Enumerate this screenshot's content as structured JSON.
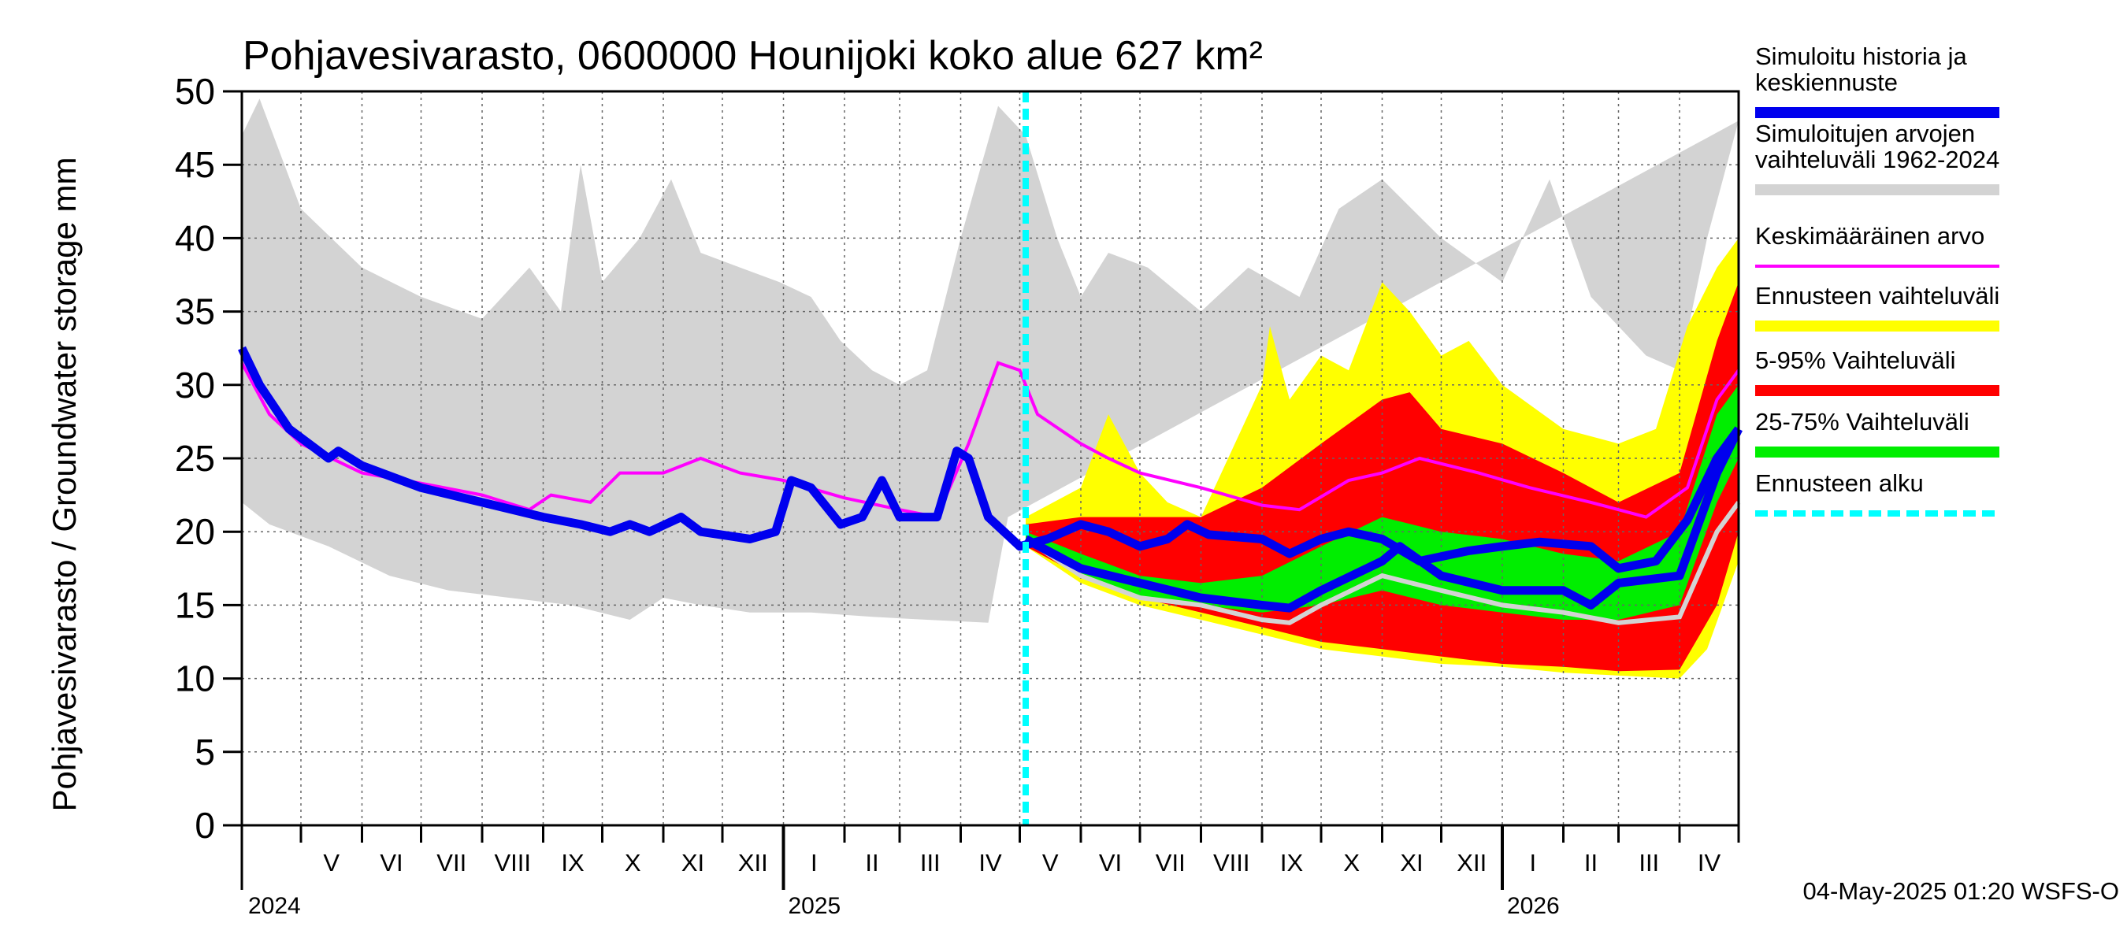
{
  "chart_data": {
    "type": "area",
    "title": "Pohjavesivarasto, 0600000 Hounijoki koko alue 627 km²",
    "ylabel": "Pohjavesivarasto / Groundwater storage   mm",
    "ylim": [
      0,
      50
    ],
    "yticks": [
      0,
      5,
      10,
      15,
      20,
      25,
      30,
      35,
      40,
      45,
      50
    ],
    "xlim": [
      "2024-04-01",
      "2026-05-01"
    ],
    "grid": true,
    "legend_position": "right",
    "month_labels": [
      "V",
      "VI",
      "VII",
      "VIII",
      "IX",
      "X",
      "XI",
      "XII",
      "I",
      "II",
      "III",
      "IV",
      "V",
      "VI",
      "VII",
      "VIII",
      "IX",
      "X",
      "XI",
      "XII",
      "I",
      "II",
      "III",
      "IV"
    ],
    "year_labels": [
      "2024",
      "2025",
      "2026"
    ],
    "forecast_start": "2025-05-04",
    "timestamp": "04-May-2025 01:20 WSFS-O",
    "colors": {
      "history": "#0000ee",
      "hist_range": "#d3d3d3",
      "mean": "#ff00ff",
      "fc_range": "#ffff00",
      "p5_95": "#ff0000",
      "p25_75": "#00ee00",
      "forecast_line": "#00ffff",
      "sim_median": "#d3d3d3"
    },
    "legend": [
      {
        "key": "history",
        "label": "Simuloitu historia ja keskiennuste",
        "lines": [
          "Simuloitu historia ja",
          "keskiennuste"
        ]
      },
      {
        "key": "hist_range",
        "label": "Simuloitujen arvojen vaihteluväli 1962-2024",
        "lines": [
          "Simuloitujen arvojen",
          "vaihteluväli 1962-2024"
        ]
      },
      {
        "key": "mean",
        "label": "Keskimääräinen arvo",
        "lines": [
          "Keskimääräinen arvo"
        ]
      },
      {
        "key": "fc_range",
        "label": "Ennusteen vaihteluväli",
        "lines": [
          "Ennusteen vaihteluväli"
        ]
      },
      {
        "key": "p5_95",
        "label": "5-95% Vaihteluväli",
        "lines": [
          "5-95% Vaihteluväli"
        ]
      },
      {
        "key": "p25_75",
        "label": "25-75% Vaihteluväli",
        "lines": [
          "25-75% Vaihteluväli"
        ]
      },
      {
        "key": "forecast_line",
        "label": "Ennusteen alku",
        "lines": [
          "Ennusteen alku"
        ]
      }
    ],
    "series": {
      "hist_range_upper": [
        [
          "2024-04-01",
          47
        ],
        [
          "2024-04-10",
          49.5
        ],
        [
          "2024-05-01",
          42
        ],
        [
          "2024-06-01",
          38
        ],
        [
          "2024-07-01",
          36
        ],
        [
          "2024-08-01",
          34.5
        ],
        [
          "2024-08-25",
          38
        ],
        [
          "2024-09-10",
          35
        ],
        [
          "2024-09-20",
          45
        ],
        [
          "2024-10-01",
          37
        ],
        [
          "2024-10-20",
          40
        ],
        [
          "2024-11-05",
          44
        ],
        [
          "2024-11-20",
          39
        ],
        [
          "2024-12-10",
          38
        ],
        [
          "2024-12-30",
          37
        ],
        [
          "2025-01-15",
          36
        ],
        [
          "2025-01-30",
          33
        ],
        [
          "2025-02-15",
          31
        ],
        [
          "2025-03-01",
          30
        ],
        [
          "2025-03-15",
          31
        ],
        [
          "2025-04-01",
          40
        ],
        [
          "2025-04-20",
          49
        ],
        [
          "2025-05-04",
          47
        ],
        [
          "2025-05-20",
          40
        ],
        [
          "2025-06-01",
          36
        ],
        [
          "2025-06-15",
          39
        ],
        [
          "2025-07-05",
          38
        ],
        [
          "2025-08-01",
          35
        ],
        [
          "2025-08-25",
          38
        ],
        [
          "2025-09-20",
          36
        ],
        [
          "2025-10-10",
          42
        ],
        [
          "2025-11-01",
          44
        ],
        [
          "2025-12-01",
          40
        ],
        [
          "2026-01-01",
          37
        ],
        [
          "2026-01-25",
          44
        ],
        [
          "2026-02-15",
          36
        ],
        [
          "2026-03-01",
          34
        ],
        [
          "2026-03-15",
          32
        ],
        [
          "2026-04-01",
          31
        ],
        [
          "2026-04-15",
          40
        ],
        [
          "2026-05-01",
          48
        ]
      ],
      "hist_range_lower": [
        [
          "2024-04-01",
          22
        ],
        [
          "2024-04-15",
          20.5
        ],
        [
          "2024-05-15",
          19
        ],
        [
          "2024-06-15",
          17
        ],
        [
          "2024-07-15",
          16
        ],
        [
          "2024-08-15",
          15.5
        ],
        [
          "2024-09-15",
          15
        ],
        [
          "2024-10-15",
          14
        ],
        [
          "2024-11-01",
          15.5
        ],
        [
          "2024-11-20",
          15
        ],
        [
          "2024-12-15",
          14.5
        ],
        [
          "2025-01-15",
          14.5
        ],
        [
          "2025-02-15",
          14.2
        ],
        [
          "2025-03-15",
          14
        ],
        [
          "2025-04-15",
          13.8
        ],
        [
          "2025-04-25",
          21
        ]
      ],
      "fc_range_upper": [
        [
          "2025-05-04",
          21
        ],
        [
          "2025-06-01",
          23
        ],
        [
          "2025-06-15",
          28
        ],
        [
          "2025-07-01",
          24
        ],
        [
          "2025-07-15",
          22
        ],
        [
          "2025-08-01",
          21
        ],
        [
          "2025-09-01",
          30
        ],
        [
          "2025-09-05",
          34
        ],
        [
          "2025-09-15",
          29
        ],
        [
          "2025-10-01",
          32
        ],
        [
          "2025-10-15",
          31
        ],
        [
          "2025-11-01",
          37
        ],
        [
          "2025-11-15",
          35
        ],
        [
          "2025-12-01",
          32
        ],
        [
          "2025-12-15",
          33
        ],
        [
          "2026-01-01",
          30
        ],
        [
          "2026-02-01",
          27
        ],
        [
          "2026-03-01",
          26
        ],
        [
          "2026-03-20",
          27
        ],
        [
          "2026-04-05",
          34
        ],
        [
          "2026-04-20",
          38
        ],
        [
          "2026-05-01",
          40
        ]
      ],
      "fc_range_lower": [
        [
          "2025-05-04",
          19
        ],
        [
          "2025-06-01",
          16.5
        ],
        [
          "2025-07-01",
          15
        ],
        [
          "2025-08-01",
          14
        ],
        [
          "2025-09-01",
          13
        ],
        [
          "2025-10-01",
          12
        ],
        [
          "2025-11-01",
          11.5
        ],
        [
          "2025-12-01",
          11
        ],
        [
          "2026-01-01",
          10.8
        ],
        [
          "2026-02-01",
          10.4
        ],
        [
          "2026-03-01",
          10.2
        ],
        [
          "2026-04-01",
          10
        ],
        [
          "2026-04-15",
          12
        ],
        [
          "2026-05-01",
          18
        ]
      ],
      "p5_95_upper": [
        [
          "2025-05-04",
          20.5
        ],
        [
          "2025-06-01",
          21
        ],
        [
          "2025-07-01",
          21
        ],
        [
          "2025-08-01",
          21
        ],
        [
          "2025-09-01",
          23
        ],
        [
          "2025-10-01",
          26
        ],
        [
          "2025-11-01",
          29
        ],
        [
          "2025-11-15",
          29.5
        ],
        [
          "2025-12-01",
          27
        ],
        [
          "2026-01-01",
          26
        ],
        [
          "2026-02-01",
          24
        ],
        [
          "2026-03-01",
          22
        ],
        [
          "2026-04-01",
          24
        ],
        [
          "2026-04-20",
          33
        ],
        [
          "2026-05-01",
          37
        ]
      ],
      "p5_95_lower": [
        [
          "2025-05-04",
          19
        ],
        [
          "2025-06-01",
          17
        ],
        [
          "2025-07-01",
          15.5
        ],
        [
          "2025-08-01",
          14.5
        ],
        [
          "2025-09-01",
          13.5
        ],
        [
          "2025-10-01",
          12.5
        ],
        [
          "2025-11-01",
          12
        ],
        [
          "2025-12-01",
          11.5
        ],
        [
          "2026-01-01",
          11
        ],
        [
          "2026-02-01",
          10.8
        ],
        [
          "2026-03-01",
          10.5
        ],
        [
          "2026-04-01",
          10.6
        ],
        [
          "2026-04-20",
          15
        ],
        [
          "2026-05-01",
          20
        ]
      ],
      "p25_75_upper": [
        [
          "2025-05-04",
          20
        ],
        [
          "2025-06-01",
          18.5
        ],
        [
          "2025-07-01",
          17
        ],
        [
          "2025-08-01",
          16.5
        ],
        [
          "2025-09-01",
          17
        ],
        [
          "2025-10-01",
          19
        ],
        [
          "2025-11-01",
          21
        ],
        [
          "2025-12-01",
          20
        ],
        [
          "2026-01-01",
          19.5
        ],
        [
          "2026-02-01",
          18.5
        ],
        [
          "2026-03-01",
          18
        ],
        [
          "2026-04-01",
          20
        ],
        [
          "2026-04-20",
          28
        ],
        [
          "2026-05-01",
          30
        ]
      ],
      "p25_75_lower": [
        [
          "2025-05-04",
          19.5
        ],
        [
          "2025-06-01",
          17
        ],
        [
          "2025-07-01",
          15.5
        ],
        [
          "2025-08-01",
          15
        ],
        [
          "2025-09-01",
          14.5
        ],
        [
          "2025-10-01",
          15
        ],
        [
          "2025-11-01",
          16
        ],
        [
          "2025-12-01",
          15
        ],
        [
          "2026-01-01",
          14.5
        ],
        [
          "2026-02-01",
          14
        ],
        [
          "2026-03-01",
          14
        ],
        [
          "2026-04-01",
          15
        ],
        [
          "2026-04-20",
          22
        ],
        [
          "2026-05-01",
          25
        ]
      ],
      "mean": [
        [
          "2024-04-01",
          31.5
        ],
        [
          "2024-04-15",
          28
        ],
        [
          "2024-05-01",
          26
        ],
        [
          "2024-06-01",
          24
        ],
        [
          "2024-07-01",
          23.3
        ],
        [
          "2024-08-01",
          22.5
        ],
        [
          "2024-08-25",
          21.5
        ],
        [
          "2024-09-05",
          22.5
        ],
        [
          "2024-09-25",
          22
        ],
        [
          "2024-10-10",
          24
        ],
        [
          "2024-11-01",
          24
        ],
        [
          "2024-11-20",
          25
        ],
        [
          "2024-12-10",
          24
        ],
        [
          "2025-01-01",
          23.5
        ],
        [
          "2025-02-01",
          22.3
        ],
        [
          "2025-03-01",
          21.5
        ],
        [
          "2025-03-20",
          21
        ],
        [
          "2025-04-05",
          26
        ],
        [
          "2025-04-20",
          31.5
        ],
        [
          "2025-05-01",
          31
        ],
        [
          "2025-05-10",
          28
        ],
        [
          "2025-06-01",
          26
        ],
        [
          "2025-06-15",
          25
        ],
        [
          "2025-07-01",
          24
        ],
        [
          "2025-08-01",
          23
        ],
        [
          "2025-09-01",
          21.8
        ],
        [
          "2025-09-20",
          21.5
        ],
        [
          "2025-10-15",
          23.5
        ],
        [
          "2025-11-01",
          24
        ],
        [
          "2025-11-20",
          25
        ],
        [
          "2025-12-20",
          24
        ],
        [
          "2026-01-15",
          23
        ],
        [
          "2026-02-15",
          22
        ],
        [
          "2026-03-15",
          21
        ],
        [
          "2026-04-05",
          23
        ],
        [
          "2026-04-20",
          29
        ],
        [
          "2026-05-01",
          31
        ]
      ],
      "history": [
        [
          "2024-04-01",
          32.5
        ],
        [
          "2024-04-10",
          30
        ],
        [
          "2024-04-25",
          27
        ],
        [
          "2024-05-15",
          25
        ],
        [
          "2024-05-20",
          25.5
        ],
        [
          "2024-06-01",
          24.5
        ],
        [
          "2024-07-01",
          23
        ],
        [
          "2024-08-01",
          22
        ],
        [
          "2024-09-01",
          21
        ],
        [
          "2024-09-20",
          20.5
        ],
        [
          "2024-10-05",
          20
        ],
        [
          "2024-10-15",
          20.5
        ],
        [
          "2024-10-25",
          20
        ],
        [
          "2024-11-10",
          21
        ],
        [
          "2024-11-20",
          20
        ],
        [
          "2024-12-15",
          19.5
        ],
        [
          "2024-12-28",
          20
        ],
        [
          "2025-01-05",
          23.5
        ],
        [
          "2025-01-15",
          23
        ],
        [
          "2025-01-30",
          20.5
        ],
        [
          "2025-02-10",
          21
        ],
        [
          "2025-02-20",
          23.5
        ],
        [
          "2025-03-01",
          21
        ],
        [
          "2025-03-20",
          21
        ],
        [
          "2025-03-30",
          25.5
        ],
        [
          "2025-04-05",
          25
        ],
        [
          "2025-04-15",
          21
        ],
        [
          "2025-05-01",
          19
        ],
        [
          "2025-05-15",
          19.5
        ],
        [
          "2025-06-01",
          20.5
        ],
        [
          "2025-06-15",
          20
        ],
        [
          "2025-07-01",
          19
        ],
        [
          "2025-07-15",
          19.5
        ],
        [
          "2025-07-25",
          20.5
        ],
        [
          "2025-08-05",
          19.8
        ],
        [
          "2025-09-01",
          19.5
        ],
        [
          "2025-09-15",
          18.5
        ],
        [
          "2025-10-01",
          19.5
        ],
        [
          "2025-10-15",
          20
        ],
        [
          "2025-11-01",
          19.5
        ],
        [
          "2025-11-20",
          18
        ],
        [
          "2025-12-15",
          18.7
        ],
        [
          "2026-01-01",
          19
        ],
        [
          "2026-01-20",
          19.3
        ],
        [
          "2026-02-15",
          19
        ],
        [
          "2026-03-01",
          17.5
        ],
        [
          "2026-03-20",
          18
        ],
        [
          "2026-04-05",
          20.8
        ],
        [
          "2026-04-20",
          25
        ],
        [
          "2026-05-01",
          27
        ]
      ],
      "forecast_mean": [
        [
          "2025-05-04",
          19.5
        ],
        [
          "2025-06-01",
          17.5
        ],
        [
          "2025-07-01",
          16.5
        ],
        [
          "2025-08-01",
          15.5
        ],
        [
          "2025-09-01",
          15
        ],
        [
          "2025-09-15",
          14.8
        ],
        [
          "2025-10-01",
          16
        ],
        [
          "2025-11-01",
          18
        ],
        [
          "2025-11-10",
          19
        ],
        [
          "2025-12-01",
          17
        ],
        [
          "2026-01-01",
          16
        ],
        [
          "2026-02-01",
          16
        ],
        [
          "2026-02-15",
          15
        ],
        [
          "2026-03-01",
          16.5
        ],
        [
          "2026-04-01",
          17
        ],
        [
          "2026-04-20",
          24
        ],
        [
          "2026-05-01",
          27
        ]
      ],
      "sim_median": [
        [
          "2025-05-04",
          19.5
        ],
        [
          "2025-06-01",
          17
        ],
        [
          "2025-07-01",
          15.5
        ],
        [
          "2025-08-01",
          15
        ],
        [
          "2025-09-01",
          14
        ],
        [
          "2025-09-15",
          13.8
        ],
        [
          "2025-10-01",
          15
        ],
        [
          "2025-11-01",
          17
        ],
        [
          "2025-12-01",
          16
        ],
        [
          "2026-01-01",
          15
        ],
        [
          "2026-02-01",
          14.5
        ],
        [
          "2026-03-01",
          13.8
        ],
        [
          "2026-04-01",
          14.2
        ],
        [
          "2026-04-20",
          20
        ],
        [
          "2026-05-01",
          22
        ]
      ]
    }
  }
}
